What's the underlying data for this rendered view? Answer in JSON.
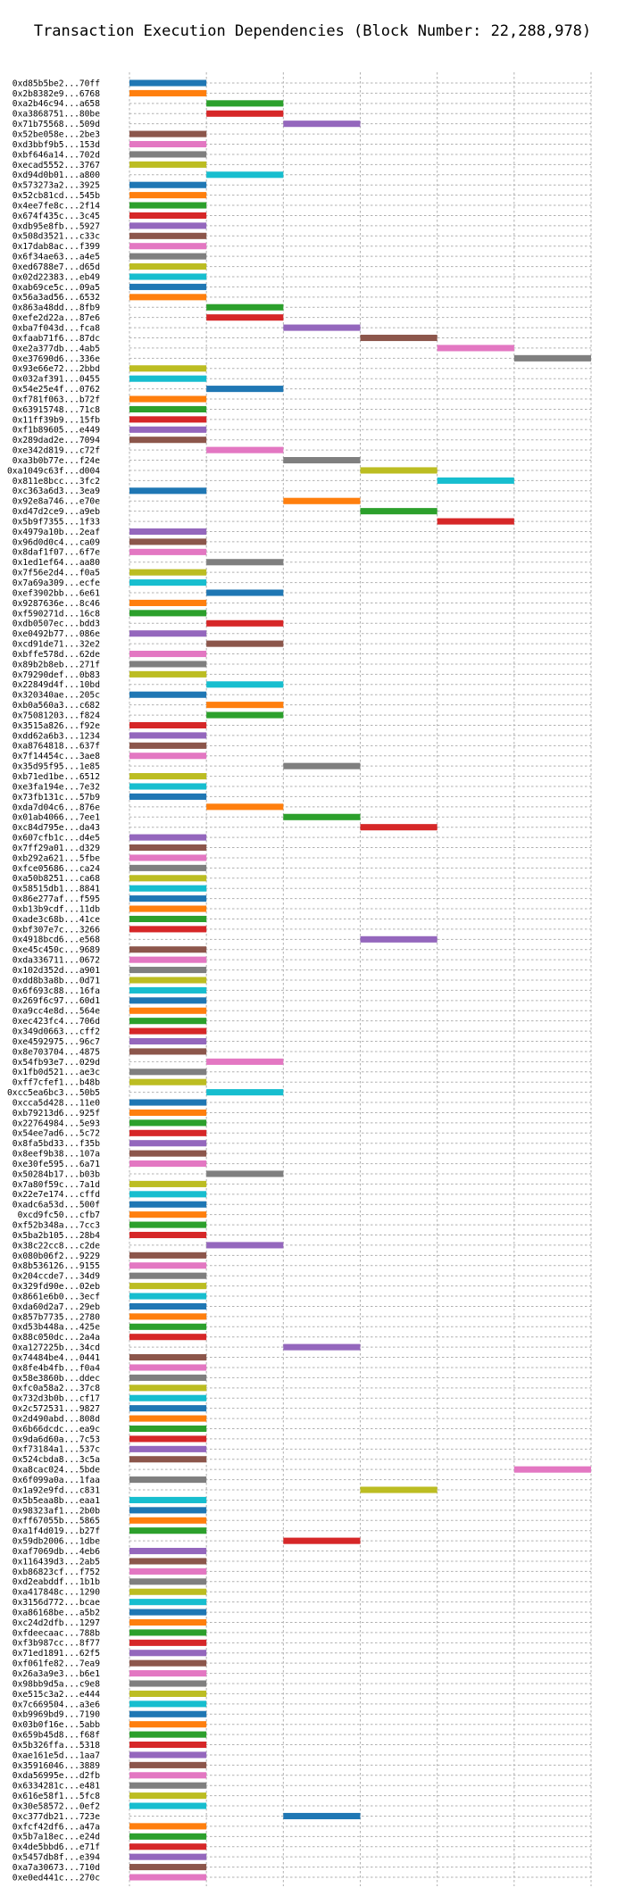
{
  "chart_data": {
    "type": "bar",
    "orientation": "horizontal",
    "title": "Transaction Execution Dependencies (Block Number: 22,288,978)",
    "xlabel": "",
    "ylabel": "",
    "xlim": [
      0,
      6
    ],
    "xticks": [
      "0",
      "1",
      "2",
      "3",
      "4",
      "5",
      "6"
    ],
    "grid": true,
    "palette": [
      "#1f77b4",
      "#ff7f0e",
      "#2ca02c",
      "#d62728",
      "#9467bd",
      "#8c564b",
      "#e377c2",
      "#7f7f7f",
      "#bcbd22",
      "#17becf"
    ],
    "transactions": [
      [
        "0xd85b5be2...70ff",
        0
      ],
      [
        "0x2b8382e9...6768",
        0
      ],
      [
        "0xa2b46c94...a658",
        1
      ],
      [
        "0xa3868751...80be",
        1
      ],
      [
        "0x71b75568...509d",
        2
      ],
      [
        "0x52be058e...2be3",
        0
      ],
      [
        "0xd3bbf9b5...153d",
        0
      ],
      [
        "0xbf646a14...702d",
        0
      ],
      [
        "0xecad5552...3767",
        0
      ],
      [
        "0xd94d0b01...a800",
        1
      ],
      [
        "0x573273a2...3925",
        0
      ],
      [
        "0x52cb81cd...545b",
        0
      ],
      [
        "0x4ee7fe8c...2f14",
        0
      ],
      [
        "0x674f435c...3c45",
        0
      ],
      [
        "0xdb95e8fb...5927",
        0
      ],
      [
        "0x508d3521...c33c",
        0
      ],
      [
        "0x17dab8ac...f399",
        0
      ],
      [
        "0x6f34ae63...a4e5",
        0
      ],
      [
        "0xed6788e7...d65d",
        0
      ],
      [
        "0x02d22383...eb49",
        0
      ],
      [
        "0xab69ce5c...09a5",
        0
      ],
      [
        "0x56a3ad56...6532",
        0
      ],
      [
        "0x863a48dd...8fb9",
        1
      ],
      [
        "0xefe2d22a...87e6",
        1
      ],
      [
        "0xba7f043d...fca8",
        2
      ],
      [
        "0xfaab71f6...87dc",
        3
      ],
      [
        "0xe2a377db...4ab5",
        4
      ],
      [
        "0xe37690d6...336e",
        5
      ],
      [
        "0x93e66e72...2bbd",
        0
      ],
      [
        "0x032af391...0455",
        0
      ],
      [
        "0x54e25e4f...0762",
        1
      ],
      [
        "0xf781f063...b72f",
        0
      ],
      [
        "0x63915748...71c8",
        0
      ],
      [
        "0x11ff39b9...15fb",
        0
      ],
      [
        "0xf1b89605...e449",
        0
      ],
      [
        "0x289dad2e...7094",
        0
      ],
      [
        "0xe342d819...c72f",
        1
      ],
      [
        "0xa3b0b77e...f24e",
        2
      ],
      [
        "0xa1049c63f...d004",
        3
      ],
      [
        "0x811e8bcc...3fc2",
        4
      ],
      [
        "0xc363a6d3...3ea9",
        0
      ],
      [
        "0x92e8a746...e70e",
        2
      ],
      [
        "0xd47d2ce9...a9eb",
        3
      ],
      [
        "0x5b9f7355...1f33",
        4
      ],
      [
        "0x4979a10b...2eaf",
        0
      ],
      [
        "0x96d0d0c4...ca09",
        0
      ],
      [
        "0x8daf1f07...6f7e",
        0
      ],
      [
        "0x1ed1ef64...aa80",
        1
      ],
      [
        "0x7f56e2d4...f0a5",
        0
      ],
      [
        "0x7a69a309...ecfe",
        0
      ],
      [
        "0xef3902bb...6e61",
        1
      ],
      [
        "0x9287636e...8c46",
        0
      ],
      [
        "0xf590271d...16c8",
        0
      ],
      [
        "0xdb0507ec...bdd3",
        1
      ],
      [
        "0xe0492b77...086e",
        0
      ],
      [
        "0xcd91de71...32e2",
        1
      ],
      [
        "0xbffe578d...62de",
        0
      ],
      [
        "0x89b2b8eb...271f",
        0
      ],
      [
        "0x79290def...0b83",
        0
      ],
      [
        "0x22849d4f...10bd",
        1
      ],
      [
        "0x320340ae...205c",
        0
      ],
      [
        "0xb0a560a3...c682",
        1
      ],
      [
        "0x75081203...f824",
        1
      ],
      [
        "0x3515a826...f92e",
        0
      ],
      [
        "0xdd62a6b3...1234",
        0
      ],
      [
        "0xa8764818...637f",
        0
      ],
      [
        "0x7f14454c...3ae8",
        0
      ],
      [
        "0x35d95f95...1e85",
        2
      ],
      [
        "0xb71ed1be...6512",
        0
      ],
      [
        "0xe3fa194e...7e32",
        0
      ],
      [
        "0x73fb131c...57b9",
        0
      ],
      [
        "0xda7d04c6...876e",
        1
      ],
      [
        "0x01ab4066...7ee1",
        2
      ],
      [
        "0xc84d795e...da43",
        3
      ],
      [
        "0x607cfb1c...d4e5",
        0
      ],
      [
        "0x7ff29a01...d329",
        0
      ],
      [
        "0xb292a621...5fbe",
        0
      ],
      [
        "0xfce05686...ca24",
        0
      ],
      [
        "0xa50b8251...ca68",
        0
      ],
      [
        "0x58515db1...8841",
        0
      ],
      [
        "0x86e277af...f595",
        0
      ],
      [
        "0xb13b9cdf...11db",
        0
      ],
      [
        "0xade3c68b...41ce",
        0
      ],
      [
        "0xbf307e7c...3266",
        0
      ],
      [
        "0x4918bcd6...e568",
        3
      ],
      [
        "0xe45c450c...9689",
        0
      ],
      [
        "0xda336711...0672",
        0
      ],
      [
        "0x102d352d...a901",
        0
      ],
      [
        "0xdd8b3a8b...0d71",
        0
      ],
      [
        "0x6f693c88...16fa",
        0
      ],
      [
        "0x269f6c97...60d1",
        0
      ],
      [
        "0xa9cc4e8d...564e",
        0
      ],
      [
        "0xec423fc4...706d",
        0
      ],
      [
        "0x349d0663...cff2",
        0
      ],
      [
        "0xe4592975...96c7",
        0
      ],
      [
        "0x8e703704...4875",
        0
      ],
      [
        "0x54fb93e7...029d",
        1
      ],
      [
        "0x1fb0d521...ae3c",
        0
      ],
      [
        "0xff7cfef1...b48b",
        0
      ],
      [
        "0xcc5ea6bc3...50b5",
        1
      ],
      [
        "0xcca5d428...11e0",
        0
      ],
      [
        "0xb79213d6...925f",
        0
      ],
      [
        "0x22764984...5e93",
        0
      ],
      [
        "0x54ee7ad6...5c72",
        0
      ],
      [
        "0x8fa5bd33...f35b",
        0
      ],
      [
        "0x8eef9b38...107a",
        0
      ],
      [
        "0xe30fe595...6a71",
        0
      ],
      [
        "0x50284b17...b03b",
        1
      ],
      [
        "0x7a80f59c...7a1d",
        0
      ],
      [
        "0x22e7e174...cffd",
        0
      ],
      [
        "0xadc6a53d...500f",
        0
      ],
      [
        "0xcd9fc50...cfb7",
        0
      ],
      [
        "0xf52b348a...7cc3",
        0
      ],
      [
        "0x5ba2b105...28b4",
        0
      ],
      [
        "0x38c22cc8...c2de",
        1
      ],
      [
        "0x080b06f2...9229",
        0
      ],
      [
        "0x8b536126...9155",
        0
      ],
      [
        "0x204ccde7...34d9",
        0
      ],
      [
        "0x329fd90e...02eb",
        0
      ],
      [
        "0x8661e6b0...3ecf",
        0
      ],
      [
        "0xda60d2a7...29eb",
        0
      ],
      [
        "0x857b7735...2780",
        0
      ],
      [
        "0xd53b448a...425e",
        0
      ],
      [
        "0x88c050dc...2a4a",
        0
      ],
      [
        "0xa127225b...34cd",
        2
      ],
      [
        "0x74484be4...0441",
        0
      ],
      [
        "0x8fe4b4fb...f0a4",
        0
      ],
      [
        "0x58e3860b...ddec",
        0
      ],
      [
        "0xfc0a58a2...37c8",
        0
      ],
      [
        "0x732d3b0b...cf17",
        0
      ],
      [
        "0x2c572531...9827",
        0
      ],
      [
        "0x2d490abd...808d",
        0
      ],
      [
        "0x6b66dcdc...ea9c",
        0
      ],
      [
        "0x9da6d60a...7c53",
        0
      ],
      [
        "0xf73184a1...537c",
        0
      ],
      [
        "0x524cbda8...3c5a",
        0
      ],
      [
        "0xa8cac024...5bde",
        5
      ],
      [
        "0x6f099a0a...1faa",
        0
      ],
      [
        "0x1a92e9fd...c831",
        3
      ],
      [
        "0x5b5eaa8b...eaa1",
        0
      ],
      [
        "0x98323af1...2b0b",
        0
      ],
      [
        "0xff67055b...5865",
        0
      ],
      [
        "0xa1f4d019...b27f",
        0
      ],
      [
        "0x59db2006...1dbe",
        2
      ],
      [
        "0xaf7069db...4eb6",
        0
      ],
      [
        "0x116439d3...2ab5",
        0
      ],
      [
        "0xb86823cf...f752",
        0
      ],
      [
        "0xd2eabddf...1b1b",
        0
      ],
      [
        "0xa417848c...1290",
        0
      ],
      [
        "0x3156d772...bcae",
        0
      ],
      [
        "0xa86168be...a5b2",
        0
      ],
      [
        "0xc24d2dfb...1297",
        0
      ],
      [
        "0xfdeecaac...788b",
        0
      ],
      [
        "0xf3b987cc...8f77",
        0
      ],
      [
        "0x71ed1891...62f5",
        0
      ],
      [
        "0xf061fe82...7ea9",
        0
      ],
      [
        "0x26a3a9e3...b6e1",
        0
      ],
      [
        "0x98bb9d5a...c9e8",
        0
      ],
      [
        "0xe515c3a2...e444",
        0
      ],
      [
        "0x7c669504...a3e6",
        0
      ],
      [
        "0xb9969bd9...7190",
        0
      ],
      [
        "0x03b0f16e...5abb",
        0
      ],
      [
        "0x659b45d8...f68f",
        0
      ],
      [
        "0x5b326ffa...5318",
        0
      ],
      [
        "0xae161e5d...1aa7",
        0
      ],
      [
        "0x35916046...3889",
        0
      ],
      [
        "0xda56995e...d2fb",
        0
      ],
      [
        "0x6334281c...e481",
        0
      ],
      [
        "0x616e58f1...5fc8",
        0
      ],
      [
        "0x30e58572...0ef2",
        0
      ],
      [
        "0xc377db21...723e",
        2
      ],
      [
        "0xfcf42df6...a47a",
        0
      ],
      [
        "0x5b7a18ec...e24d",
        0
      ],
      [
        "0x4de5bbd6...e71f",
        0
      ],
      [
        "0x5457db8f...e394",
        0
      ],
      [
        "0xa7a30673...710d",
        0
      ],
      [
        "0xe0ed441c...270c",
        0
      ]
    ]
  }
}
